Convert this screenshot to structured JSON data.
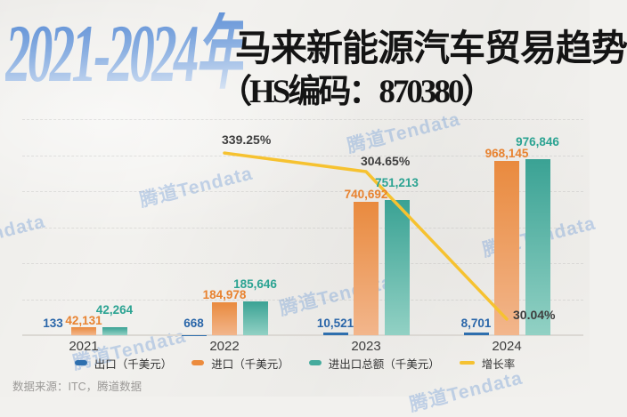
{
  "title": {
    "year_range": "2021-2024年",
    "main": "马来新能源汽车贸易趋势",
    "subtitle": "（HS编码：870380）"
  },
  "watermark_text": "腾道Tendata",
  "source_text": "数据来源：ITC，腾道数据",
  "legend": [
    {
      "label": "出口（千美元）",
      "color": "#2e6fae",
      "type": "bar"
    },
    {
      "label": "进口（千美元）",
      "color": "#ec8b3d",
      "type": "bar"
    },
    {
      "label": "进出口总额（千美元）",
      "color": "#45ab9d",
      "type": "bar"
    },
    {
      "label": "增长率",
      "color": "#f5c232",
      "type": "line"
    }
  ],
  "chart_data": {
    "type": "bar+line",
    "title": "2021-2024年马来新能源汽车贸易趋势（HS编码：870380）",
    "categories": [
      "2021",
      "2022",
      "2023",
      "2024"
    ],
    "series": [
      {
        "name": "出口（千美元）",
        "type": "bar",
        "values": [
          133,
          668,
          10521,
          8701
        ],
        "labels": [
          "133",
          "668",
          "10,521",
          "8,701"
        ],
        "color": "#2e6fae",
        "label_color": "#2a66a9"
      },
      {
        "name": "进口（千美元）",
        "type": "bar",
        "values": [
          42131,
          184978,
          740692,
          968145
        ],
        "labels": [
          "42,131",
          "184,978",
          "740,692",
          "968,145"
        ],
        "color_top": "#e98a3e",
        "color_bottom": "#f2b68c",
        "label_color": "#e8822f"
      },
      {
        "name": "进出口总额（千美元）",
        "type": "bar",
        "values": [
          42264,
          185646,
          751213,
          976846
        ],
        "labels": [
          "42,264",
          "185,646",
          "751,213",
          "976,846"
        ],
        "color_top": "#3aa294",
        "color_bottom": "#92d1c4",
        "label_color": "#2ba392"
      },
      {
        "name": "增长率",
        "type": "line",
        "values": [
          null,
          339.25,
          304.65,
          30.04
        ],
        "labels": [
          null,
          "339.25%",
          "304.65%",
          "30.04%"
        ],
        "color": "#f6c230",
        "label_color": "#3f3f3f"
      }
    ],
    "value_axis": {
      "min": 0,
      "max": 1200000,
      "gridline_interval": 200000,
      "ticks_visible": false
    },
    "grid": "faint dashed horizontal lines",
    "legend_position": "bottom center"
  }
}
